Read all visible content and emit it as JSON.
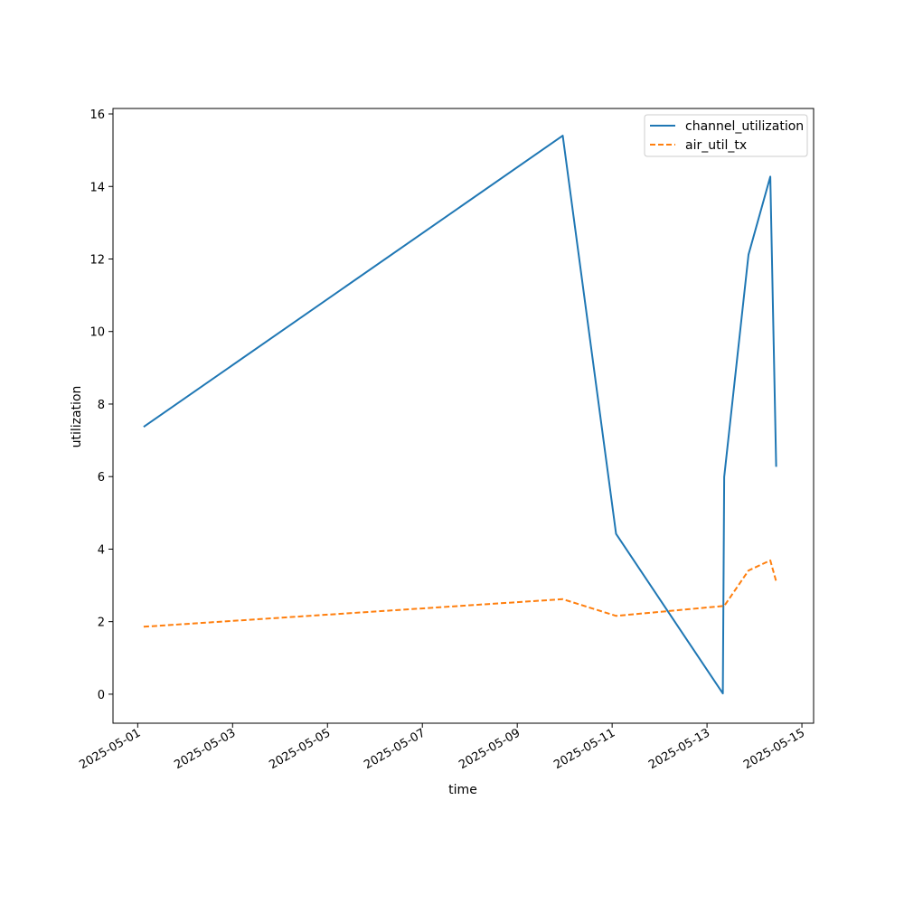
{
  "chart_data": {
    "type": "line",
    "title": "",
    "xlabel": "time",
    "ylabel": "utilization",
    "x_ticks": [
      "2025-05-01",
      "2025-05-03",
      "2025-05-05",
      "2025-05-07",
      "2025-05-09",
      "2025-05-11",
      "2025-05-13",
      "2025-05-15"
    ],
    "y_ticks": [
      "0",
      "2",
      "4",
      "6",
      "8",
      "10",
      "12",
      "14",
      "16"
    ],
    "xlim": [
      "2025-04-30T11:30",
      "2025-05-15T05:55"
    ],
    "ylim": [
      -0.8,
      16.15
    ],
    "grid": false,
    "legend_position": "top-right",
    "x": [
      "2025-05-01T03:00",
      "2025-05-09T23:00",
      "2025-05-11T02:00",
      "2025-05-13T08:00",
      "2025-05-13T08:40",
      "2025-05-13T21:00",
      "2025-05-14T08:00",
      "2025-05-14T11:00"
    ],
    "series": [
      {
        "name": "channel_utilization",
        "color": "#1f77b4",
        "style": "solid",
        "values": [
          7.37,
          15.4,
          4.42,
          0.02,
          5.99,
          12.12,
          14.27,
          6.27
        ]
      },
      {
        "name": "air_util_tx",
        "color": "#ff7f0e",
        "style": "dashed",
        "values": [
          1.86,
          2.62,
          2.16,
          2.43,
          2.43,
          3.41,
          3.69,
          3.11
        ]
      }
    ]
  }
}
